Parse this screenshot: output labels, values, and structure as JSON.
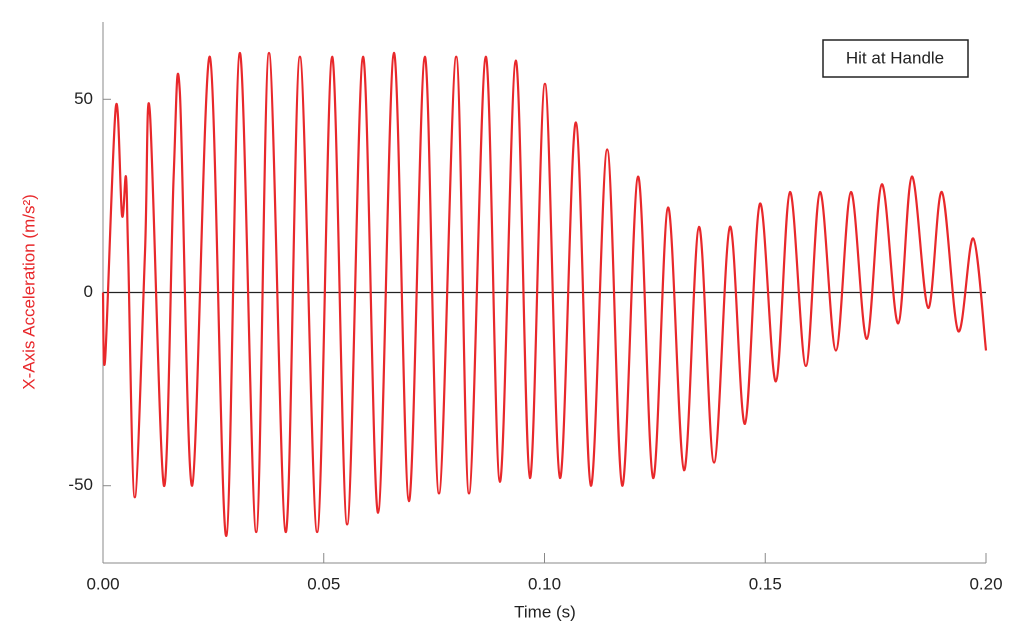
{
  "chart_data": {
    "type": "line",
    "title": "Hit at Handle",
    "x_label": "Time (s)",
    "y_label": "X-Axis Acceleration (m/s²)",
    "x": [
      0,
      0.0005,
      0.0029,
      0.0043,
      0.0052,
      0.0057,
      0.0072,
      0.0095,
      0.0106,
      0.0138,
      0.016,
      0.0174,
      0.0202,
      0.0242,
      0.0279,
      0.031,
      0.0347,
      0.0376,
      0.0414,
      0.0446,
      0.0485,
      0.0519,
      0.0553,
      0.0589,
      0.0623,
      0.0659,
      0.0693,
      0.0729,
      0.0761,
      0.08,
      0.0829,
      0.0867,
      0.0899,
      0.0935,
      0.0967,
      0.1001,
      0.1035,
      0.1071,
      0.1105,
      0.1142,
      0.1176,
      0.1212,
      0.1246,
      0.128,
      0.1316,
      0.135,
      0.1384,
      0.142,
      0.1454,
      0.1488,
      0.1524,
      0.1556,
      0.1592,
      0.1624,
      0.166,
      0.1694,
      0.173,
      0.1764,
      0.1801,
      0.1832,
      0.1869,
      0.19,
      0.1937,
      0.1971,
      0.2
    ],
    "series": [
      {
        "name": "X-Axis Acceleration",
        "color": "#e8282b",
        "values": [
          0,
          -17,
          48,
          20,
          30,
          10,
          -53,
          10,
          47,
          -50,
          30,
          52,
          -50,
          61,
          -63,
          62,
          -62,
          62,
          -62,
          61,
          -62,
          61,
          -60,
          61,
          -57,
          62,
          -54,
          61,
          -52,
          61,
          -52,
          61,
          -49,
          60,
          -48,
          54,
          -48,
          44,
          -50,
          37,
          -50,
          30,
          -48,
          22,
          -46,
          17,
          -44,
          17,
          -34,
          23,
          -23,
          26,
          -19,
          26,
          -15,
          26,
          -12,
          28,
          -8,
          30,
          -4,
          26,
          -10,
          14,
          -15
        ]
      }
    ],
    "xlim": [
      0,
      0.2
    ],
    "ylim": [
      -70,
      70
    ],
    "xticks": [
      {
        "value": 0,
        "label": "0.00"
      },
      {
        "value": 0.05,
        "label": "0.05"
      },
      {
        "value": 0.1,
        "label": "0.10"
      },
      {
        "value": 0.15,
        "label": "0.15"
      },
      {
        "value": 0.2,
        "label": "0.20"
      }
    ],
    "yticks": [
      -50,
      0,
      50
    ],
    "grid": false
  }
}
